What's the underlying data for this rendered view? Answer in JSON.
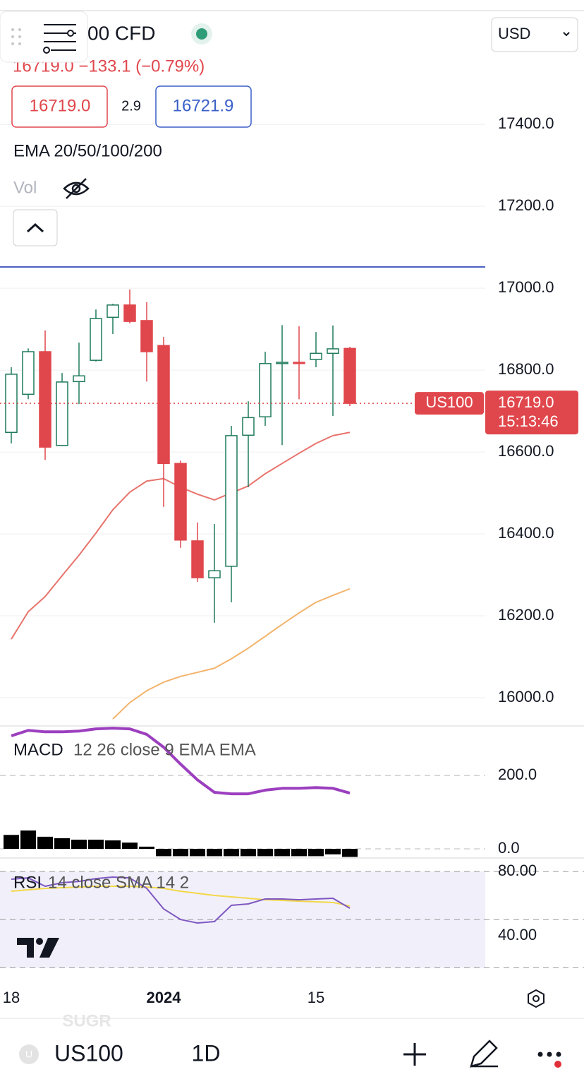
{
  "header": {
    "symbol": "00 CFD",
    "quote": "16719.0 −133.1 (−0.79%)",
    "sell": "16719.0",
    "spread": "2.9",
    "buy": "16721.9",
    "indicator": "EMA 20/50/100/200",
    "volume": "Vol",
    "currency": "USD"
  },
  "chart_data": {
    "type": "candlestick",
    "categories": [
      "18",
      null,
      null,
      null,
      null,
      null,
      null,
      null,
      null,
      "2024",
      null,
      null,
      null,
      null,
      null,
      null,
      null,
      null,
      "15",
      null,
      null
    ],
    "open": [
      16648,
      16741,
      16845,
      16616,
      16772,
      16824,
      16929,
      16959,
      16921,
      16860,
      16572,
      16383,
      16293,
      16321,
      16641,
      16686,
      16816,
      16819,
      16826,
      16841,
      16853
    ],
    "high": [
      16807,
      16853,
      16897,
      16793,
      16867,
      16948,
      16962,
      16997,
      16966,
      16881,
      16579,
      16428,
      16424,
      16664,
      16724,
      16845,
      16910,
      16907,
      16893,
      16909,
      16857
    ],
    "low": [
      16621,
      16729,
      16581,
      16616,
      16717,
      16821,
      16888,
      16914,
      16772,
      16466,
      16366,
      16283,
      16183,
      16233,
      16514,
      16664,
      16617,
      16729,
      16807,
      16688,
      16712
    ],
    "close": [
      16790,
      16845,
      16612,
      16771,
      16786,
      16926,
      16959,
      16919,
      16845,
      16572,
      16385,
      16293,
      16310,
      16640,
      16684,
      16816,
      16819,
      16816,
      16841,
      16852,
      16719
    ],
    "up_color": "#1f7a5c",
    "down_color": "#e0474c",
    "ylim": [
      15931,
      17678
    ],
    "yticks": [
      {
        "value": 16000,
        "label": "16000.0"
      },
      {
        "value": 16200,
        "label": "16200.0"
      },
      {
        "value": 16400,
        "label": "16400.0"
      },
      {
        "value": 16600,
        "label": "16600.0"
      },
      {
        "value": 16800,
        "label": "16800.0"
      },
      {
        "value": 17000,
        "label": "17000.0"
      },
      {
        "value": 17200,
        "label": "17200.0"
      },
      {
        "value": 17400,
        "label": "17400.0"
      }
    ],
    "grid": true,
    "price_line": 17052,
    "price_line_color": "#4a5fc1",
    "overlays": [
      {
        "color": "#e8736c",
        "values": [
          16143,
          16210,
          16247,
          16298,
          16348,
          16402,
          16459,
          16502,
          16529,
          16535,
          16514,
          16497,
          16483,
          16500,
          16517,
          16547,
          16572,
          16597,
          16621,
          16640,
          16648
        ]
      },
      {
        "color": "#f2b36b",
        "values": [
          null,
          null,
          null,
          null,
          null,
          null,
          15948,
          15988,
          16017,
          16038,
          16052,
          16062,
          16072,
          16095,
          16121,
          16150,
          16179,
          16207,
          16233,
          16250,
          16266
        ]
      }
    ],
    "last_price": {
      "symbol": "US100",
      "label": "16719.0",
      "countdown": "15:13:46"
    },
    "panes": [
      {
        "type": "macd",
        "title": "MACD",
        "params": "12 26 close 9 EMA EMA",
        "ylim": [
          -25,
          335
        ],
        "yticks": [
          {
            "value": 0,
            "label": "0.0"
          },
          {
            "value": 200,
            "label": "200.0"
          }
        ],
        "macd": {
          "color": "#9c3fbf",
          "values": [
            308,
            323,
            319,
            319,
            321,
            327,
            329,
            327,
            312,
            277,
            231,
            188,
            154,
            150,
            150,
            160,
            165,
            165,
            167,
            165,
            152
          ]
        },
        "histogram": {
          "color": "#000000",
          "values": [
            38,
            50,
            33,
            29,
            25,
            25,
            23,
            17,
            6,
            -20,
            -20,
            -20,
            -20,
            -20,
            -20,
            -20,
            -20,
            -20,
            -20,
            -15,
            -22
          ]
        }
      },
      {
        "type": "rsi",
        "title": "RSI",
        "params": "14 close SMA 14 2",
        "ylim": [
          11.4,
          88.4
        ],
        "yticks": [
          {
            "value": 80,
            "label": "80.00"
          },
          {
            "value": 40,
            "label": "40.00"
          }
        ],
        "band": [
          20,
          80
        ],
        "band_lines": [
          80,
          50,
          20
        ],
        "rsi": {
          "color": "#7e57c2",
          "values": [
            75.2,
            76.0,
            70.8,
            73.0,
            73.8,
            75.6,
            76.5,
            76.0,
            69.5,
            56.7,
            50.1,
            47.9,
            48.8,
            58.9,
            59.8,
            62.9,
            62.9,
            62.4,
            62.9,
            63.3,
            57.1
          ]
        },
        "sma": {
          "color": "#f2d84a",
          "values": [
            67.7,
            68.6,
            69.5,
            69.9,
            70.3,
            70.8,
            70.8,
            70.8,
            70.3,
            69.5,
            67.7,
            66.4,
            65.1,
            64.2,
            63.3,
            62.4,
            62.0,
            61.5,
            61.1,
            60.7,
            58.5
          ]
        }
      }
    ]
  },
  "toolbar": {
    "ghost": "SUGR",
    "avatar": "U",
    "symbol": "US100",
    "interval": "1D"
  }
}
